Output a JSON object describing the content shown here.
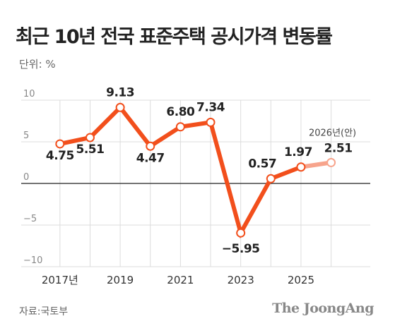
{
  "title": "최근 10년 전국 표준주택 공시가격 변동률",
  "unit_label": "단위: %",
  "source": "자료:국토부",
  "logo": "The JoongAng",
  "chart_data": {
    "type": "line",
    "x": [
      2017,
      2018,
      2019,
      2020,
      2021,
      2022,
      2023,
      2024,
      2025,
      2026
    ],
    "values": [
      4.75,
      5.51,
      9.13,
      4.47,
      6.8,
      7.34,
      -5.95,
      0.57,
      1.97,
      2.51
    ],
    "data_labels": [
      "4.75",
      "5.51",
      "9.13",
      "4.47",
      "6.80",
      "7.34",
      "−5.95",
      "0.57",
      "1.97",
      "2.51"
    ],
    "projected_from_index": 8,
    "annotation": "2026년(안)",
    "y_ticks": [
      10,
      5,
      0,
      -5,
      -10
    ],
    "y_tick_labels": [
      "10",
      "5",
      "0",
      "−5",
      "−10"
    ],
    "x_tick_labels": [
      "2017년",
      "2019",
      "2021",
      "2023",
      "2025"
    ],
    "x_tick_years": [
      2017,
      2019,
      2021,
      2023,
      2025
    ],
    "ylim": [
      -10,
      10
    ],
    "xlim": [
      2016.3,
      2027.3
    ],
    "grid": true,
    "colors": {
      "line": "#f24f1c",
      "projected": "#f7a48c",
      "grid": "#dcdcdc",
      "zero": "#222222"
    }
  }
}
